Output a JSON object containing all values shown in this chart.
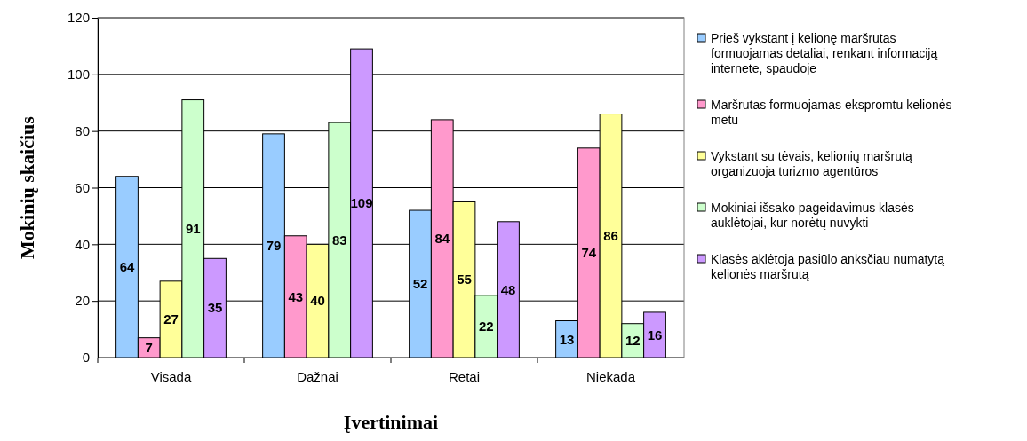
{
  "chart_data": {
    "type": "bar",
    "xlabel": "Įvertinimai",
    "ylabel": "Mokinių skaičius",
    "categories": [
      "Visada",
      "Dažnai",
      "Retai",
      "Niekada"
    ],
    "series": [
      {
        "name": "Prieš vykstant į kelionę maršrutas formuojamas detaliai, renkant informaciją internete, spaudoje",
        "color": "#99ccff",
        "values": [
          64,
          79,
          52,
          13
        ]
      },
      {
        "name": "Maršrutas formuojamas ekspromtu kelionės metu",
        "color": "#ff99cc",
        "values": [
          7,
          43,
          84,
          74
        ]
      },
      {
        "name": "Vykstant su tėvais, kelionių maršrutą organizuoja turizmo agentūros",
        "color": "#ffff99",
        "values": [
          27,
          40,
          55,
          86
        ]
      },
      {
        "name": "Mokiniai išsako pageidavimus klasės auklėtojai, kur norėtų nuvykti",
        "color": "#ccffcc",
        "values": [
          91,
          83,
          22,
          12
        ]
      },
      {
        "name": "Klasės aklėtoja pasiūlo anksčiau numatytą kelionės maršrutą",
        "color": "#cc99ff",
        "values": [
          35,
          109,
          48,
          16
        ]
      }
    ],
    "ylim": [
      0,
      120
    ],
    "yticks": [
      0,
      20,
      40,
      60,
      80,
      100,
      120
    ],
    "grid": "y",
    "legend": "right",
    "data_labels": true
  }
}
